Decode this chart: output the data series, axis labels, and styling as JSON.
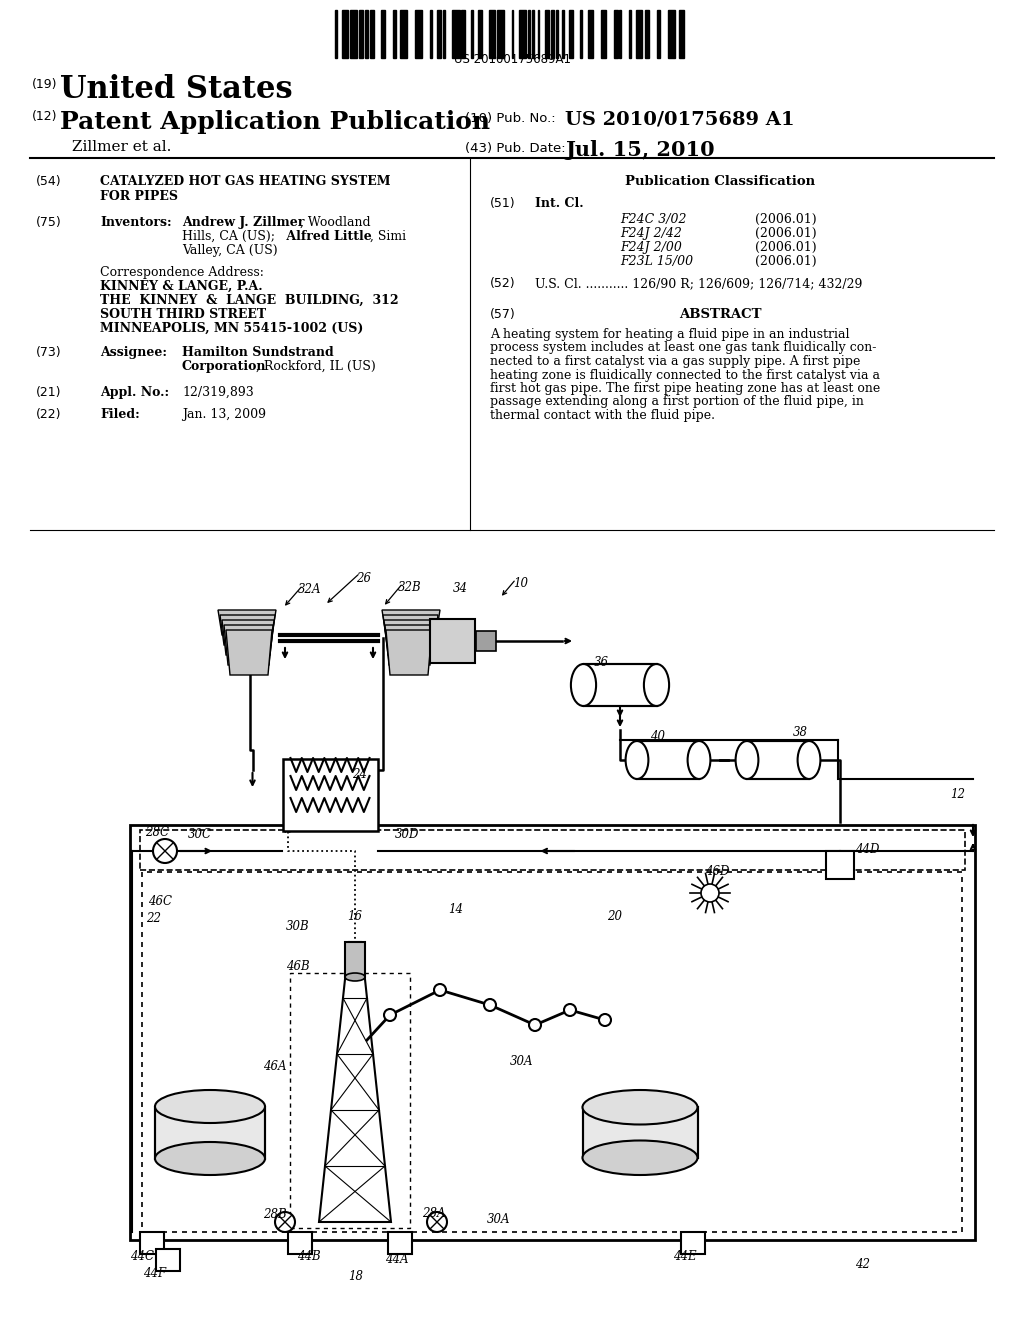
{
  "bg_color": "#ffffff",
  "barcode_text": "US 20100175689A1",
  "title_19_text": "United States",
  "title_12_text": "Patent Application Publication",
  "pub_no_label": "(10) Pub. No.:",
  "pub_no_value": "US 2010/0175689 A1",
  "authors": "Zillmer et al.",
  "pub_date_label": "(43) Pub. Date:",
  "pub_date_value": "Jul. 15, 2010",
  "field54_text_line1": "CATALYZED HOT GAS HEATING SYSTEM",
  "field54_text_line2": "FOR PIPES",
  "int_cl_items": [
    [
      "F24C 3/02",
      "(2006.01)"
    ],
    [
      "F24J 2/42",
      "(2006.01)"
    ],
    [
      "F24J 2/00",
      "(2006.01)"
    ],
    [
      "F23L 15/00",
      "(2006.01)"
    ]
  ],
  "field52_text": "U.S. Cl. ........... 126/90 R; 126/609; 126/714; 432/29",
  "abstract_lines": [
    "A heating system for heating a fluid pipe in an industrial",
    "process system includes at least one gas tank fluidically con-",
    "nected to a first catalyst via a gas supply pipe. A first pipe",
    "heating zone is fluidically connected to the first catalyst via a",
    "first hot gas pipe. The first pipe heating zone has at least one",
    "passage extending along a first portion of the fluid pipe, in",
    "thermal contact with the fluid pipe."
  ]
}
